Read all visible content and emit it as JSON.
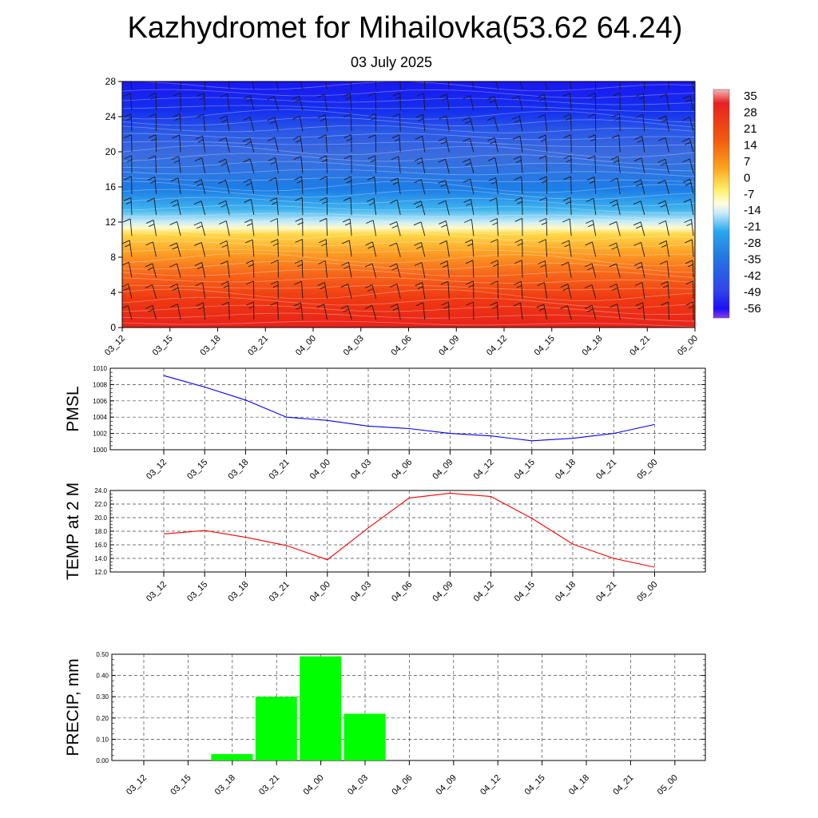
{
  "header": {
    "title": "Kazhydromet for Mihailovka(53.62 64.24)",
    "subtitle": "03 July 2025"
  },
  "colors": {
    "pmsl_line": "#0000ff",
    "temp_line": "#ff0000",
    "precip_bar": "#00ff00"
  },
  "chart_data": [
    {
      "type": "heatmap",
      "x_ticks": [
        "03_12",
        "03_15",
        "03_18",
        "03_21",
        "04_00",
        "04_03",
        "04_06",
        "04_09",
        "04_12",
        "04_15",
        "04_18",
        "04_21",
        "05_00"
      ],
      "y_ticks": [
        "0",
        "4",
        "8",
        "12",
        "16",
        "20",
        "24",
        "28"
      ],
      "ylim": [
        0,
        28
      ],
      "colorbar": {
        "labels": [
          "35",
          "28",
          "21",
          "14",
          "7",
          "0",
          "-7",
          "-14",
          "-21",
          "-28",
          "-35",
          "-42",
          "-49",
          "-56"
        ],
        "placement": "right"
      },
      "overlay": "wind barbs"
    },
    {
      "type": "line",
      "ylabel": "PMSL",
      "categories": [
        "03_12",
        "03_15",
        "03_18",
        "03_21",
        "04_00",
        "04_03",
        "04_06",
        "04_09",
        "04_12",
        "04_15",
        "04_18",
        "04_21",
        "05_00"
      ],
      "y_ticks": [
        "1000",
        "1002",
        "1004",
        "1006",
        "1008",
        "1010"
      ],
      "ylim": [
        1000,
        1010
      ],
      "values": [
        1009.1,
        1007.7,
        1006.1,
        1004.0,
        1003.6,
        1002.9,
        1002.6,
        1002.0,
        1001.7,
        1001.1,
        1001.4,
        1002.0,
        1003.1
      ],
      "grid": true
    },
    {
      "type": "line",
      "ylabel": "TEMP at 2 M",
      "categories": [
        "03_12",
        "03_15",
        "03_18",
        "03_21",
        "04_00",
        "04_03",
        "04_06",
        "04_09",
        "04_12",
        "04_15",
        "04_18",
        "04_21",
        "05_00"
      ],
      "y_ticks": [
        "12.0",
        "14.0",
        "16.0",
        "18.0",
        "20.0",
        "22.0",
        "24.0"
      ],
      "ylim": [
        12,
        24
      ],
      "values": [
        17.6,
        18.1,
        17.1,
        15.9,
        13.8,
        18.5,
        22.9,
        23.6,
        23.1,
        19.9,
        16.1,
        14.0,
        12.7
      ],
      "grid": true
    },
    {
      "type": "bar",
      "ylabel": "PRECIP, mm",
      "categories": [
        "03_12",
        "03_15",
        "03_18",
        "03_21",
        "04_00",
        "04_03",
        "04_06",
        "04_09",
        "04_12",
        "04_15",
        "04_18",
        "04_21",
        "05_00"
      ],
      "y_ticks": [
        "0.00",
        "0.10",
        "0.20",
        "0.30",
        "0.40",
        "0.50"
      ],
      "ylim": [
        0,
        0.5
      ],
      "values": [
        0,
        0.03,
        0.3,
        0.49,
        0.22,
        0,
        0,
        0,
        0,
        0,
        0,
        0,
        0
      ],
      "grid": true
    }
  ]
}
